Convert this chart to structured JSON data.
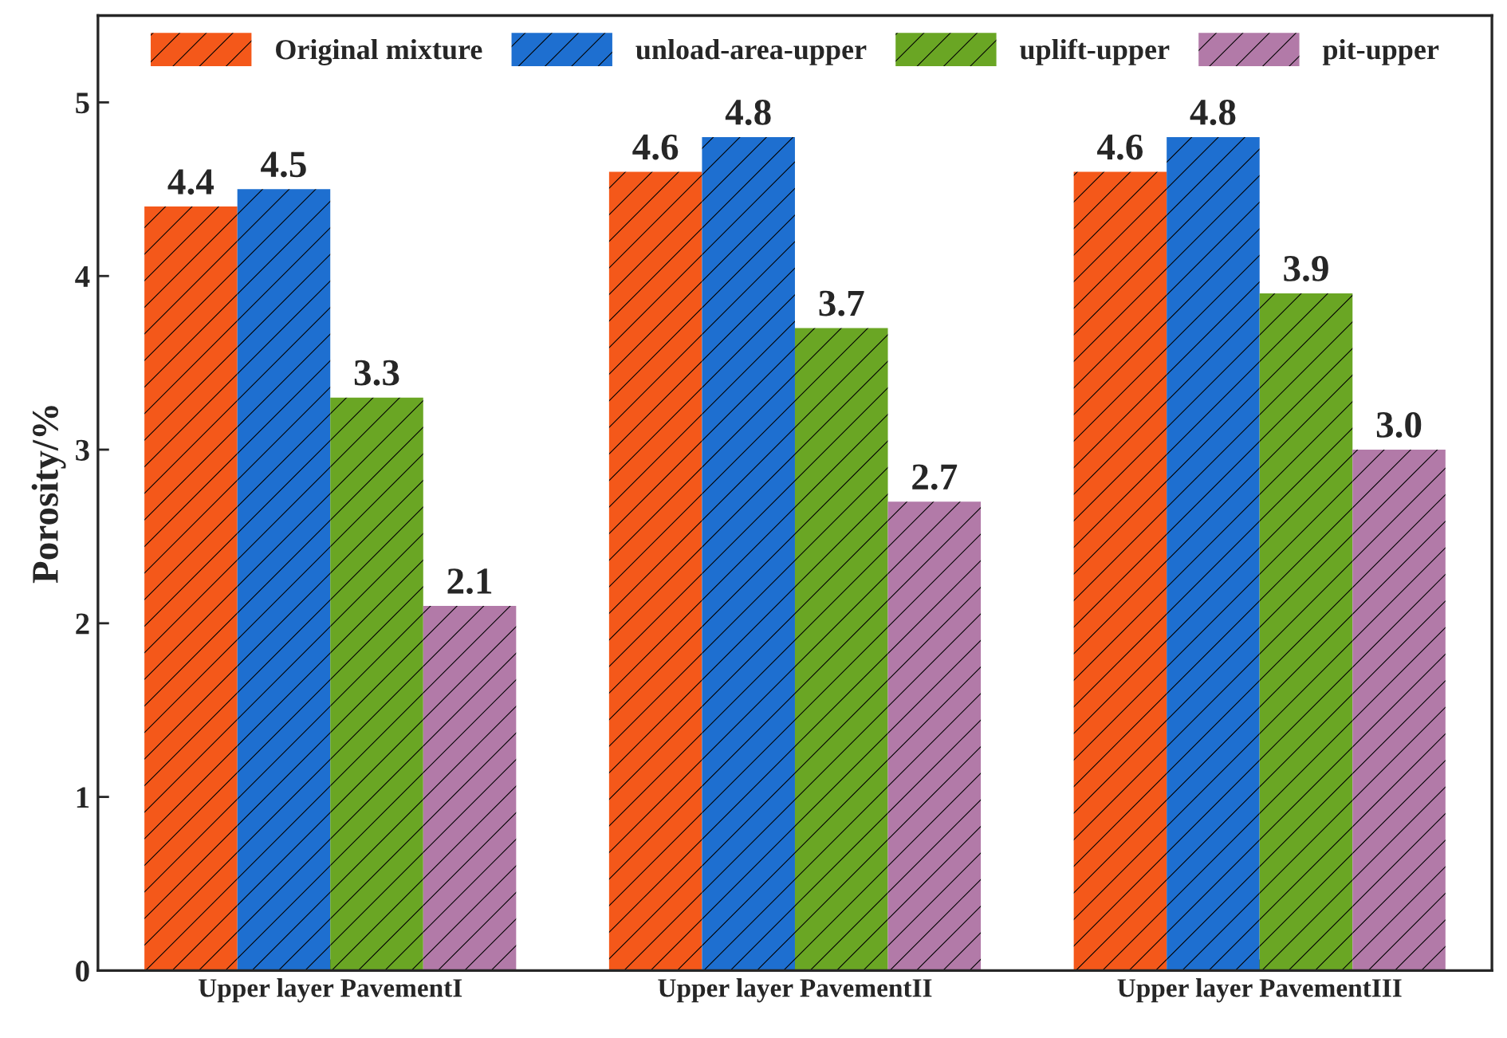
{
  "chart_data": {
    "type": "bar",
    "ylabel": "Porosity/%",
    "categories": [
      "Upper layer PavementI",
      "Upper layer PavementII",
      "Upper layer PavementIII"
    ],
    "series": [
      {
        "name": "Original mixture",
        "color": "#f4581a",
        "values": [
          4.4,
          4.6,
          4.6
        ],
        "value_labels": [
          "4.4",
          "4.6",
          "4.6"
        ]
      },
      {
        "name": "unload-area-upper",
        "color": "#1e6fd0",
        "values": [
          4.5,
          4.8,
          4.8
        ],
        "value_labels": [
          "4.5",
          "4.8",
          "4.8"
        ]
      },
      {
        "name": "uplift-upper",
        "color": "#6aa624",
        "values": [
          3.3,
          3.7,
          3.9
        ],
        "value_labels": [
          "3.3",
          "3.7",
          "3.9"
        ]
      },
      {
        "name": "pit-upper",
        "color": "#b27aa8",
        "values": [
          2.1,
          2.7,
          3.0
        ],
        "value_labels": [
          "2.1",
          "2.7",
          "3.0"
        ]
      }
    ],
    "ylim": [
      0,
      5.5
    ],
    "yticks": [
      0,
      1,
      2,
      3,
      4,
      5
    ],
    "legend": "top"
  }
}
